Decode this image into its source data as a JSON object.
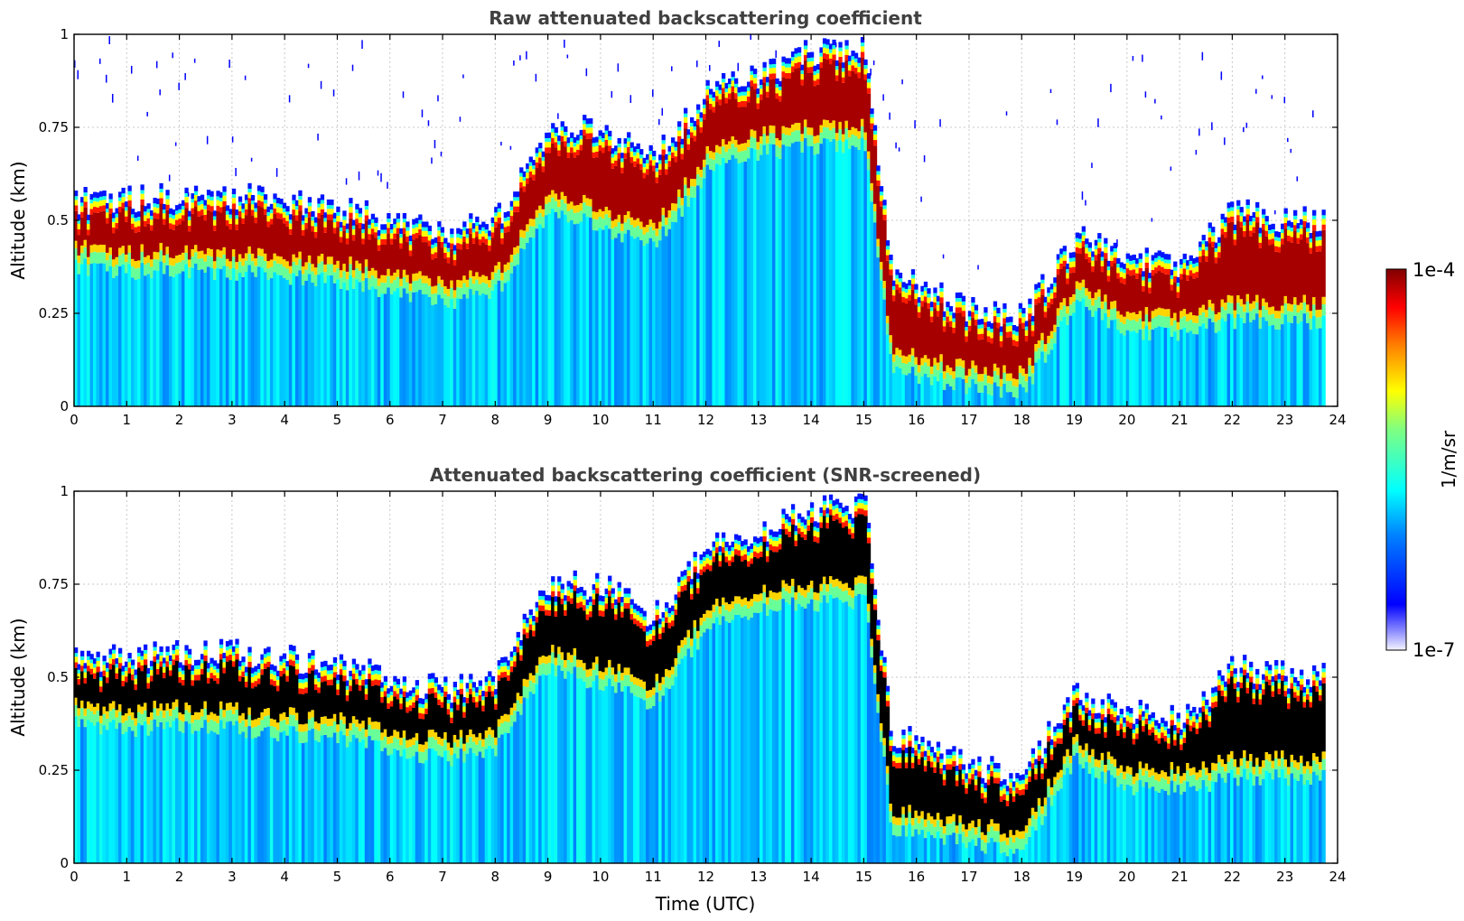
{
  "chart_data": [
    {
      "type": "heatmap",
      "id": "raw",
      "title": "Raw attenuated backscattering coefficient",
      "xlabel": "",
      "ylabel": "Altitude (km)",
      "xlim": [
        0,
        24
      ],
      "ylim": [
        0,
        1
      ],
      "xticks": [
        0,
        1,
        2,
        3,
        4,
        5,
        6,
        7,
        8,
        9,
        10,
        11,
        12,
        13,
        14,
        15,
        16,
        17,
        18,
        19,
        20,
        21,
        22,
        23,
        24
      ],
      "yticks": [
        0,
        0.25,
        0.5,
        0.75,
        1
      ],
      "ytick_labels": [
        "0",
        "0.25",
        "0.5",
        "0.75",
        "1"
      ],
      "grid": true,
      "data_end_hour": 23.7,
      "cloud_base_km_approx": [
        [
          0,
          0.4
        ],
        [
          1,
          0.38
        ],
        [
          2,
          0.39
        ],
        [
          3,
          0.38
        ],
        [
          4,
          0.37
        ],
        [
          5,
          0.36
        ],
        [
          6,
          0.33
        ],
        [
          7,
          0.3
        ],
        [
          8,
          0.33
        ],
        [
          9,
          0.55
        ],
        [
          10,
          0.5
        ],
        [
          11,
          0.45
        ],
        [
          12,
          0.65
        ],
        [
          13,
          0.7
        ],
        [
          14,
          0.72
        ],
        [
          15,
          0.72
        ],
        [
          15.5,
          0.12
        ],
        [
          16,
          0.1
        ],
        [
          17,
          0.07
        ],
        [
          18,
          0.06
        ],
        [
          19,
          0.3
        ],
        [
          20,
          0.22
        ],
        [
          21,
          0.22
        ],
        [
          22,
          0.25
        ],
        [
          23,
          0.25
        ]
      ],
      "cloud_top_km_approx": [
        [
          0,
          0.55
        ],
        [
          1,
          0.55
        ],
        [
          2,
          0.56
        ],
        [
          3,
          0.56
        ],
        [
          4,
          0.55
        ],
        [
          5,
          0.53
        ],
        [
          6,
          0.5
        ],
        [
          7,
          0.46
        ],
        [
          8,
          0.5
        ],
        [
          9,
          0.75
        ],
        [
          10,
          0.74
        ],
        [
          11,
          0.66
        ],
        [
          12,
          0.84
        ],
        [
          13,
          0.88
        ],
        [
          14,
          0.95
        ],
        [
          15,
          0.95
        ],
        [
          15.5,
          0.35
        ],
        [
          16,
          0.32
        ],
        [
          17,
          0.25
        ],
        [
          18,
          0.24
        ],
        [
          19,
          0.45
        ],
        [
          20,
          0.4
        ],
        [
          21,
          0.38
        ],
        [
          22,
          0.52
        ],
        [
          23,
          0.5
        ]
      ]
    },
    {
      "type": "heatmap",
      "id": "screened",
      "title": "Attenuated backscattering coefficient (SNR-screened)",
      "xlabel": "Time (UTC)",
      "ylabel": "Altitude (km)",
      "xlim": [
        0,
        24
      ],
      "ylim": [
        0,
        1
      ],
      "xticks": [
        0,
        1,
        2,
        3,
        4,
        5,
        6,
        7,
        8,
        9,
        10,
        11,
        12,
        13,
        14,
        15,
        16,
        17,
        18,
        19,
        20,
        21,
        22,
        23,
        24
      ],
      "yticks": [
        0,
        0.25,
        0.5,
        0.75,
        1
      ],
      "ytick_labels": [
        "0",
        "0.25",
        "0.5",
        "0.75",
        "1"
      ],
      "grid": true,
      "data_end_hour": 23.7,
      "saturated_color": "#000000"
    }
  ],
  "colorbar": {
    "label": "1/m/sr",
    "max_label": "1e-4",
    "min_label": "1e-7",
    "vmin": 1e-07,
    "vmax": 0.0001,
    "scale": "log",
    "colormap": "jet"
  },
  "colors": {
    "title": "#404040",
    "grid": "#c8c8c8",
    "dark_red": "#800000",
    "blue": "#0000ff",
    "cyan": "#00ffff",
    "yellow": "#ffff00"
  }
}
